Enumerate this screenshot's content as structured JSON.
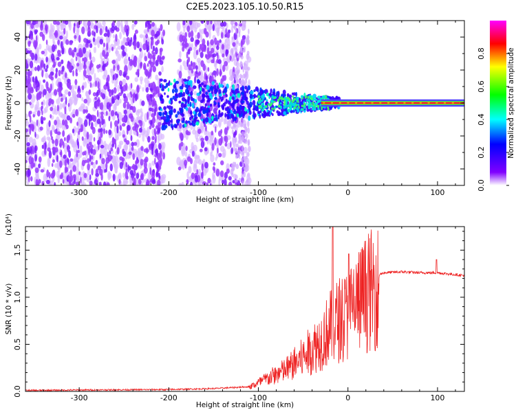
{
  "title": "C2E5.2023.105.10.50.R15",
  "chart_data": [
    {
      "type": "heatmap",
      "xlabel": "Height of straight line (km)",
      "ylabel": "Frequency (Hz)",
      "xlim": [
        -360,
        130
      ],
      "ylim": [
        -50,
        50
      ],
      "x_ticks": [
        -300,
        -200,
        -100,
        0,
        100
      ],
      "y_ticks": [
        -40,
        -20,
        0,
        20,
        40
      ],
      "colorbar": {
        "label": "Normalized spectral amplitude",
        "range": [
          0,
          1
        ],
        "ticks": [
          "0.0",
          "0.2",
          "0.4",
          "0.6",
          "0.8"
        ],
        "colormap": [
          "#ff00ff",
          "#ff0000",
          "#ffff00",
          "#00ff00",
          "#00ffff",
          "#0000ff",
          "#8000ff",
          "#ffffff"
        ]
      },
      "description_values": {
        "noise_region_x": [
          -360,
          -120
        ],
        "line_frequency_hz": 0,
        "coherent_from_x": -30
      }
    },
    {
      "type": "line",
      "xlabel": "Height of straight line (km)",
      "ylabel": "SNR (10 * v/v)",
      "y_multiplier": "(x10⁴)",
      "xlim": [
        -360,
        130
      ],
      "ylim": [
        0,
        1.75
      ],
      "x_ticks": [
        -300,
        -200,
        -100,
        0,
        100
      ],
      "y_ticks": [
        "0.0",
        "0.5",
        "1.0",
        "1.5"
      ],
      "series_color": "#ee2222",
      "trend_points": [
        [
          -360,
          0.01
        ],
        [
          -300,
          0.015
        ],
        [
          -200,
          0.02
        ],
        [
          -150,
          0.03
        ],
        [
          -110,
          0.05
        ],
        [
          -90,
          0.15
        ],
        [
          -70,
          0.25
        ],
        [
          -50,
          0.4
        ],
        [
          -30,
          0.6
        ],
        [
          -20,
          0.75
        ],
        [
          -10,
          0.85
        ],
        [
          0,
          0.9
        ],
        [
          10,
          1.05
        ],
        [
          20,
          1.15
        ],
        [
          30,
          1.22
        ],
        [
          40,
          1.26
        ],
        [
          60,
          1.27
        ],
        [
          80,
          1.26
        ],
        [
          100,
          1.26
        ],
        [
          130,
          1.23
        ]
      ]
    }
  ]
}
